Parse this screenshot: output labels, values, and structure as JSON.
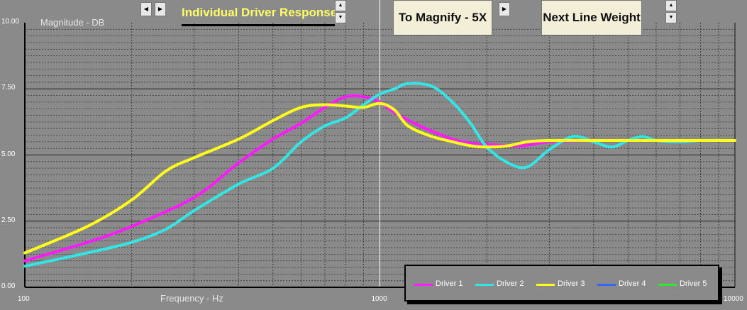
{
  "controls": {
    "title_text": "Individual Driver Response",
    "magnify_label": "To Magnify - 5X",
    "line_weight_label": "Next Line Weight",
    "left_arrow": "◀",
    "right_arrow": "▶",
    "up_arrow": "▲",
    "down_arrow": "▼"
  },
  "colors": {
    "plot_bg": "#8a8a8a",
    "driver1": "#ff1aff",
    "driver2": "#33e6e6",
    "driver3": "#ffff1a",
    "driver4": "#3366ff",
    "driver5": "#33e633"
  },
  "chart_data": {
    "type": "line",
    "ylabel": "Magnitude  -  DB",
    "xlabel": "Frequency  -  Hz",
    "x_scale": "log",
    "xlim": [
      100,
      10000
    ],
    "ylim": [
      0,
      10
    ],
    "y_ticks": [
      "0.00",
      "2.50",
      "5.00",
      "7.50",
      "10.00"
    ],
    "x_ticks": [
      "100",
      "1000",
      "10000"
    ],
    "grid": true,
    "legend_position": "bottom-right",
    "series": [
      {
        "name": "Driver 1",
        "color": "#ff1aff",
        "x": [
          100,
          150,
          200,
          300,
          400,
          500,
          600,
          700,
          800,
          900,
          1000,
          1100,
          1250,
          1400,
          1600,
          1800,
          2000,
          2500,
          3000,
          4000,
          6000,
          8000,
          10000
        ],
        "y": [
          1.0,
          1.7,
          2.3,
          3.4,
          4.7,
          5.6,
          6.2,
          6.8,
          7.2,
          7.2,
          7.0,
          6.6,
          6.2,
          5.9,
          5.6,
          5.45,
          5.4,
          5.35,
          5.5,
          5.55,
          5.55,
          5.55,
          5.55
        ]
      },
      {
        "name": "Driver 2",
        "color": "#33e6e6",
        "x": [
          100,
          150,
          200,
          250,
          300,
          400,
          500,
          600,
          700,
          800,
          900,
          1000,
          1100,
          1200,
          1400,
          1600,
          1800,
          2000,
          2300,
          2600,
          3000,
          3500,
          4000,
          4500,
          5000,
          5500,
          6000,
          7000,
          8000,
          10000
        ],
        "y": [
          0.8,
          1.3,
          1.7,
          2.2,
          2.9,
          3.9,
          4.5,
          5.5,
          6.1,
          6.4,
          6.9,
          7.3,
          7.5,
          7.7,
          7.6,
          7.0,
          6.2,
          5.3,
          4.7,
          4.55,
          5.2,
          5.7,
          5.5,
          5.3,
          5.55,
          5.7,
          5.55,
          5.5,
          5.55,
          5.55
        ]
      },
      {
        "name": "Driver 3",
        "color": "#ffff1a",
        "x": [
          100,
          150,
          200,
          250,
          300,
          400,
          500,
          600,
          700,
          800,
          900,
          1000,
          1100,
          1200,
          1400,
          1600,
          1800,
          2000,
          2300,
          2600,
          3000,
          4000,
          6000,
          8000,
          10000
        ],
        "y": [
          1.3,
          2.3,
          3.3,
          4.4,
          4.9,
          5.6,
          6.3,
          6.8,
          6.9,
          6.85,
          6.8,
          6.95,
          6.7,
          6.1,
          5.7,
          5.5,
          5.35,
          5.3,
          5.35,
          5.5,
          5.55,
          5.55,
          5.55,
          5.55,
          5.55
        ]
      },
      {
        "name": "Driver 4",
        "color": "#3366ff",
        "x": [],
        "y": []
      },
      {
        "name": "Driver 5",
        "color": "#33e633",
        "x": [],
        "y": []
      }
    ]
  }
}
